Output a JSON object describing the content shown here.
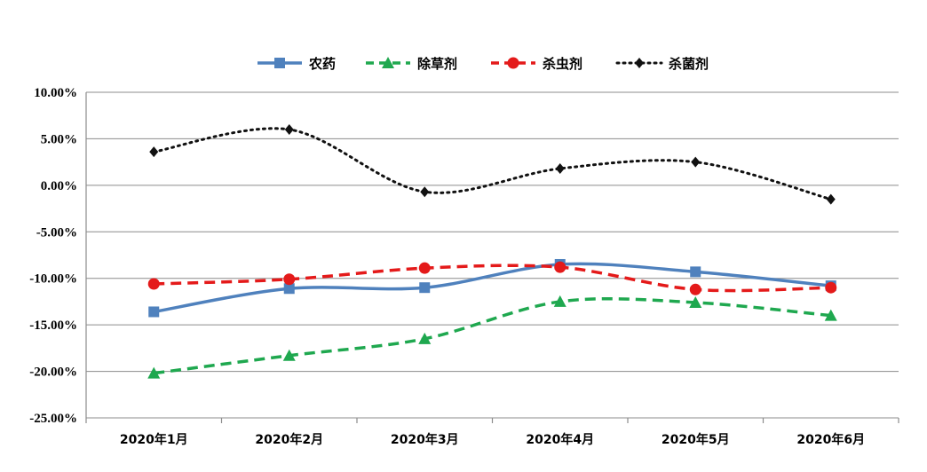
{
  "chart_data": {
    "type": "line",
    "categories": [
      "2020年1月",
      "2020年2月",
      "2020年3月",
      "2020年4月",
      "2020年5月",
      "2020年6月"
    ],
    "y_ticks": [
      "10.00%",
      "5.00%",
      "0.00%",
      "-5.00%",
      "-10.00%",
      "-15.00%",
      "-20.00%",
      "-25.00%"
    ],
    "ylim": [
      -25,
      10
    ],
    "y_unit": "%",
    "grid": true,
    "legend_position": "top-center",
    "series": [
      {
        "name": "农药",
        "values": [
          -13.6,
          -11.1,
          -11.0,
          -8.5,
          -9.3,
          -10.8
        ],
        "color": "#4f81bd",
        "dash": "solid",
        "marker": "square"
      },
      {
        "name": "除草剂",
        "values": [
          -20.2,
          -18.3,
          -16.5,
          -12.5,
          -12.6,
          -14.0
        ],
        "color": "#1fa84f",
        "dash": "dashed",
        "marker": "triangle"
      },
      {
        "name": "杀虫剂",
        "values": [
          -10.6,
          -10.1,
          -8.9,
          -8.8,
          -11.2,
          -11.0
        ],
        "color": "#e41a1a",
        "dash": "dashed",
        "marker": "circle"
      },
      {
        "name": "杀菌剂",
        "values": [
          3.6,
          6.0,
          -0.7,
          1.8,
          2.5,
          -1.5
        ],
        "color": "#111111",
        "dash": "dotted",
        "marker": "diamond"
      }
    ]
  }
}
